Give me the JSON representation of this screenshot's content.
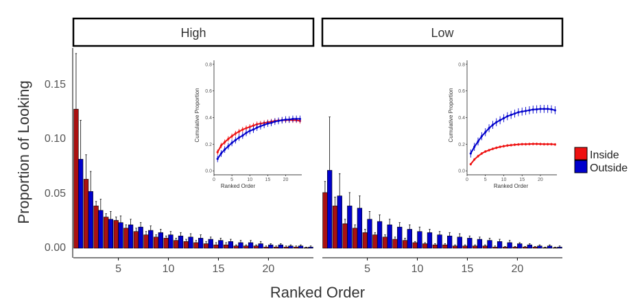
{
  "chart_data": {
    "type": "bar",
    "ylabel": "Proportion of Looking",
    "xlabel": "Ranked Order",
    "ylim": [
      -0.008,
      0.18
    ],
    "xlim": [
      0.5,
      24.5
    ],
    "yticks": [
      0.0,
      0.05,
      0.1,
      0.15
    ],
    "ytick_labels": [
      "0.00",
      "0.05",
      "0.10",
      "0.15"
    ],
    "xticks": [
      5,
      10,
      15,
      20
    ],
    "xtick_labels": [
      "5",
      "10",
      "15",
      "20"
    ],
    "grid": false,
    "legend": {
      "placement": "right",
      "entries": [
        {
          "name": "Inside",
          "color": "#ee1111"
        },
        {
          "name": "Outside",
          "color": "#0000cc"
        }
      ]
    },
    "colors": {
      "Inside": "#ee1111",
      "Inside_bar": "#aa1111",
      "Outside": "#0000cc",
      "Outside_bar": "#0000cc"
    },
    "panels": [
      {
        "label": "High",
        "x": [
          1,
          2,
          3,
          4,
          5,
          6,
          7,
          8,
          9,
          10,
          11,
          12,
          13,
          14,
          15,
          16,
          17,
          18,
          19,
          20,
          21,
          22,
          23,
          24
        ],
        "series": [
          {
            "name": "Inside",
            "values": [
              0.125,
              0.062,
              0.038,
              0.028,
              0.025,
              0.018,
              0.015,
              0.012,
              0.01,
              0.009,
              0.007,
              0.006,
              0.005,
              0.004,
              0.003,
              0.003,
              0.002,
              0.002,
              0.002,
              0.001,
              0.001,
              0.001,
              0.001,
              0.0005
            ],
            "errors": [
              0.05,
              0.022,
              0.004,
              0.003,
              0.003,
              0.003,
              0.003,
              0.003,
              0.002,
              0.002,
              0.002,
              0.002,
              0.002,
              0.002,
              0.002,
              0.002,
              0.001,
              0.001,
              0.001,
              0.001,
              0.001,
              0.001,
              0.001,
              0.0005
            ]
          },
          {
            "name": "Outside",
            "values": [
              0.08,
              0.051,
              0.034,
              0.026,
              0.023,
              0.021,
              0.019,
              0.016,
              0.014,
              0.012,
              0.011,
              0.01,
              0.009,
              0.008,
              0.007,
              0.006,
              0.005,
              0.005,
              0.004,
              0.003,
              0.003,
              0.002,
              0.002,
              0.001
            ],
            "errors": [
              0.035,
              0.018,
              0.01,
              0.007,
              0.006,
              0.005,
              0.004,
              0.004,
              0.003,
              0.003,
              0.003,
              0.003,
              0.003,
              0.002,
              0.002,
              0.002,
              0.002,
              0.002,
              0.002,
              0.001,
              0.001,
              0.001,
              0.001,
              0.001
            ]
          }
        ],
        "inset": {
          "xlabel": "Ranked Order",
          "ylabel": "Cumulative Proportion",
          "ylim": [
            -0.03,
            0.83
          ],
          "xlim": [
            0,
            24.5
          ],
          "yticks": [
            0.0,
            0.2,
            0.4,
            0.6,
            0.8
          ],
          "ytick_labels": [
            "0.0",
            "0.2",
            "0.4",
            "0.6",
            "0.8"
          ],
          "xticks": [
            0,
            5,
            10,
            15,
            20
          ],
          "xtick_labels": [
            "0",
            "5",
            "10",
            "15",
            "20"
          ],
          "series": [
            {
              "name": "Inside",
              "values": [
                0.14,
                0.19,
                0.215,
                0.24,
                0.26,
                0.28,
                0.295,
                0.31,
                0.32,
                0.33,
                0.34,
                0.35,
                0.355,
                0.36,
                0.365,
                0.37,
                0.375,
                0.378,
                0.38,
                0.38,
                0.382,
                0.38,
                0.38,
                0.375
              ],
              "error": 0.02
            },
            {
              "name": "Outside",
              "values": [
                0.09,
                0.13,
                0.16,
                0.185,
                0.21,
                0.23,
                0.25,
                0.265,
                0.285,
                0.3,
                0.31,
                0.325,
                0.335,
                0.345,
                0.355,
                0.36,
                0.37,
                0.375,
                0.38,
                0.385,
                0.385,
                0.39,
                0.39,
                0.39
              ],
              "error": 0.025
            }
          ]
        }
      },
      {
        "label": "Low",
        "x": [
          1,
          2,
          3,
          4,
          5,
          6,
          7,
          8,
          9,
          10,
          11,
          12,
          13,
          14,
          15,
          16,
          17,
          18,
          19,
          20,
          21,
          22,
          23,
          24
        ],
        "series": [
          {
            "name": "Inside",
            "values": [
              0.05,
              0.038,
              0.022,
              0.018,
              0.014,
              0.012,
              0.01,
              0.008,
              0.007,
              0.005,
              0.004,
              0.003,
              0.003,
              0.002,
              0.002,
              0.002,
              0.002,
              0.001,
              0.001,
              0.001,
              0.001,
              0.001,
              0.0005,
              0.0005
            ],
            "errors": [
              0.01,
              0.008,
              0.004,
              0.003,
              0.003,
              0.002,
              0.002,
              0.002,
              0.002,
              0.001,
              0.001,
              0.001,
              0.001,
              0.001,
              0.001,
              0.001,
              0.001,
              0.001,
              0.0005,
              0.0005,
              0.0005,
              0.0005,
              0.0005,
              0.0005
            ]
          },
          {
            "name": "Outside",
            "values": [
              0.07,
              0.047,
              0.038,
              0.036,
              0.026,
              0.024,
              0.021,
              0.019,
              0.017,
              0.015,
              0.014,
              0.012,
              0.011,
              0.01,
              0.009,
              0.008,
              0.007,
              0.006,
              0.005,
              0.004,
              0.003,
              0.002,
              0.002,
              0.001
            ],
            "errors": [
              0.048,
              0.02,
              0.012,
              0.011,
              0.007,
              0.006,
              0.005,
              0.004,
              0.004,
              0.004,
              0.003,
              0.003,
              0.003,
              0.003,
              0.002,
              0.002,
              0.002,
              0.002,
              0.002,
              0.001,
              0.001,
              0.001,
              0.001,
              0.001
            ]
          }
        ],
        "inset": {
          "xlabel": "Ranked Order",
          "ylabel": "Cumulative Proportion",
          "ylim": [
            -0.03,
            0.83
          ],
          "xlim": [
            0,
            24.5
          ],
          "yticks": [
            0.0,
            0.2,
            0.4,
            0.6,
            0.8
          ],
          "ytick_labels": [
            "0.0",
            "0.2",
            "0.4",
            "0.6",
            "0.8"
          ],
          "xticks": [
            0,
            5,
            10,
            15,
            20
          ],
          "xtick_labels": [
            "0",
            "5",
            "10",
            "15",
            "20"
          ],
          "series": [
            {
              "name": "Inside",
              "values": [
                0.05,
                0.085,
                0.11,
                0.13,
                0.145,
                0.155,
                0.165,
                0.173,
                0.18,
                0.185,
                0.19,
                0.193,
                0.196,
                0.198,
                0.2,
                0.2,
                0.201,
                0.202,
                0.202,
                0.201,
                0.2,
                0.2,
                0.2,
                0.198
              ],
              "error": 0.01
            },
            {
              "name": "Outside",
              "values": [
                0.13,
                0.18,
                0.22,
                0.26,
                0.29,
                0.32,
                0.345,
                0.365,
                0.38,
                0.395,
                0.41,
                0.42,
                0.43,
                0.44,
                0.445,
                0.45,
                0.455,
                0.46,
                0.462,
                0.465,
                0.465,
                0.465,
                0.462,
                0.455
              ],
              "error": 0.03
            }
          ]
        }
      }
    ]
  }
}
